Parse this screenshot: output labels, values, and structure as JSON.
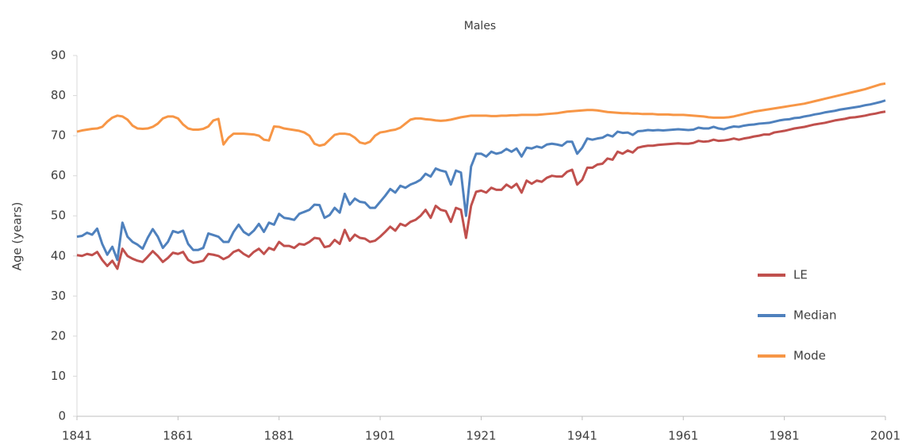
{
  "chart_data": {
    "type": "line",
    "title": "Males",
    "y_label": "Age (years)",
    "x": [
      1841,
      1842,
      1843,
      1844,
      1845,
      1846,
      1847,
      1848,
      1849,
      1850,
      1851,
      1852,
      1853,
      1854,
      1855,
      1856,
      1857,
      1858,
      1859,
      1860,
      1861,
      1862,
      1863,
      1864,
      1865,
      1866,
      1867,
      1868,
      1869,
      1870,
      1871,
      1872,
      1873,
      1874,
      1875,
      1876,
      1877,
      1878,
      1879,
      1880,
      1881,
      1882,
      1883,
      1884,
      1885,
      1886,
      1887,
      1888,
      1889,
      1890,
      1891,
      1892,
      1893,
      1894,
      1895,
      1896,
      1897,
      1898,
      1899,
      1900,
      1901,
      1902,
      1903,
      1904,
      1905,
      1906,
      1907,
      1908,
      1909,
      1910,
      1911,
      1912,
      1913,
      1914,
      1915,
      1916,
      1917,
      1918,
      1919,
      1920,
      1921,
      1922,
      1923,
      1924,
      1925,
      1926,
      1927,
      1928,
      1929,
      1930,
      1931,
      1932,
      1933,
      1934,
      1935,
      1936,
      1937,
      1938,
      1939,
      1940,
      1941,
      1942,
      1943,
      1944,
      1945,
      1946,
      1947,
      1948,
      1949,
      1950,
      1951,
      1952,
      1953,
      1954,
      1955,
      1956,
      1957,
      1958,
      1959,
      1960,
      1961,
      1962,
      1963,
      1964,
      1965,
      1966,
      1967,
      1968,
      1969,
      1970,
      1971,
      1972,
      1973,
      1974,
      1975,
      1976,
      1977,
      1978,
      1979,
      1980,
      1981,
      1982,
      1983,
      1984,
      1985,
      1986,
      1987,
      1988,
      1989,
      1990,
      1991,
      1992,
      1993,
      1994,
      1995,
      1996,
      1997,
      1998,
      1999,
      2000,
      2001
    ],
    "series": [
      {
        "name": "LE",
        "color": "#c0504d",
        "values": [
          40.2,
          40.0,
          40.5,
          40.2,
          41.0,
          39.0,
          37.5,
          38.8,
          36.8,
          41.8,
          40.0,
          39.3,
          38.8,
          38.5,
          39.8,
          41.2,
          40.0,
          38.5,
          39.5,
          40.8,
          40.5,
          41.0,
          39.0,
          38.3,
          38.5,
          38.8,
          40.5,
          40.3,
          40.0,
          39.2,
          39.8,
          41.0,
          41.5,
          40.5,
          39.8,
          41.0,
          41.8,
          40.5,
          42.0,
          41.5,
          43.5,
          42.5,
          42.5,
          42.0,
          43.0,
          42.8,
          43.5,
          44.5,
          44.3,
          42.2,
          42.5,
          44.0,
          43.0,
          46.5,
          43.8,
          45.3,
          44.5,
          44.3,
          43.5,
          43.8,
          44.8,
          46.0,
          47.3,
          46.3,
          48.0,
          47.5,
          48.5,
          49.0,
          50.0,
          51.5,
          49.5,
          52.5,
          51.5,
          51.2,
          48.5,
          52.0,
          51.5,
          44.5,
          52.5,
          56.0,
          56.3,
          55.8,
          57.0,
          56.5,
          56.5,
          57.8,
          57.0,
          58.0,
          55.8,
          58.8,
          58.0,
          58.8,
          58.5,
          59.5,
          60.0,
          59.8,
          59.8,
          61.0,
          61.5,
          57.8,
          59.0,
          62.0,
          62.0,
          62.8,
          63.0,
          64.3,
          64.0,
          66.0,
          65.5,
          66.3,
          65.8,
          67.0,
          67.3,
          67.5,
          67.5,
          67.7,
          67.8,
          67.9,
          68.0,
          68.1,
          68.0,
          68.0,
          68.2,
          68.7,
          68.5,
          68.6,
          69.0,
          68.7,
          68.8,
          69.0,
          69.3,
          69.0,
          69.3,
          69.5,
          69.8,
          70.0,
          70.3,
          70.3,
          70.8,
          71.0,
          71.2,
          71.5,
          71.8,
          72.0,
          72.2,
          72.5,
          72.8,
          73.0,
          73.2,
          73.5,
          73.8,
          74.0,
          74.2,
          74.5,
          74.6,
          74.8,
          75.0,
          75.3,
          75.5,
          75.8,
          76.0
        ]
      },
      {
        "name": "Median",
        "color": "#4f81bd",
        "values": [
          44.8,
          45.0,
          45.8,
          45.3,
          46.8,
          43.0,
          40.3,
          42.3,
          39.0,
          48.3,
          44.8,
          43.5,
          42.8,
          41.8,
          44.5,
          46.7,
          44.8,
          42.0,
          43.5,
          46.2,
          45.8,
          46.3,
          43.0,
          41.5,
          41.5,
          42.0,
          45.6,
          45.2,
          44.8,
          43.5,
          43.5,
          46.0,
          47.8,
          46.0,
          45.2,
          46.3,
          48.0,
          46.0,
          48.3,
          47.8,
          50.5,
          49.5,
          49.3,
          49.0,
          50.5,
          51.0,
          51.5,
          52.8,
          52.7,
          49.5,
          50.2,
          52.0,
          50.8,
          55.5,
          52.8,
          54.3,
          53.5,
          53.3,
          52.0,
          52.0,
          53.5,
          55.0,
          56.7,
          55.8,
          57.5,
          57.0,
          57.8,
          58.3,
          59.0,
          60.5,
          59.8,
          61.8,
          61.3,
          61.0,
          57.8,
          61.3,
          60.8,
          50.0,
          62.3,
          65.5,
          65.5,
          64.8,
          66.0,
          65.5,
          65.8,
          66.7,
          66.0,
          66.8,
          64.8,
          67.0,
          66.8,
          67.3,
          67.0,
          67.8,
          68.0,
          67.8,
          67.5,
          68.5,
          68.5,
          65.5,
          67.0,
          69.3,
          69.0,
          69.3,
          69.5,
          70.2,
          69.8,
          71.0,
          70.7,
          70.8,
          70.2,
          71.1,
          71.2,
          71.4,
          71.3,
          71.4,
          71.3,
          71.4,
          71.5,
          71.6,
          71.5,
          71.4,
          71.5,
          72.0,
          71.8,
          71.8,
          72.2,
          71.8,
          71.6,
          72.0,
          72.3,
          72.2,
          72.5,
          72.7,
          72.8,
          73.0,
          73.1,
          73.2,
          73.5,
          73.8,
          74.0,
          74.1,
          74.4,
          74.5,
          74.8,
          75.0,
          75.3,
          75.5,
          75.8,
          76.0,
          76.2,
          76.5,
          76.7,
          76.9,
          77.1,
          77.3,
          77.6,
          77.8,
          78.1,
          78.4,
          78.8
        ]
      },
      {
        "name": "Mode",
        "color": "#f79646",
        "values": [
          71.0,
          71.3,
          71.5,
          71.7,
          71.8,
          72.2,
          73.5,
          74.5,
          75.0,
          74.8,
          74.0,
          72.5,
          71.8,
          71.7,
          71.8,
          72.2,
          73.0,
          74.3,
          74.8,
          74.8,
          74.3,
          72.8,
          71.8,
          71.5,
          71.5,
          71.7,
          72.3,
          73.8,
          74.2,
          67.8,
          69.5,
          70.5,
          70.5,
          70.5,
          70.4,
          70.3,
          70.0,
          69.0,
          68.8,
          72.3,
          72.2,
          71.8,
          71.6,
          71.4,
          71.2,
          70.8,
          70.0,
          68.0,
          67.5,
          67.8,
          69.0,
          70.2,
          70.5,
          70.5,
          70.3,
          69.5,
          68.3,
          68.0,
          68.5,
          70.0,
          70.8,
          71.0,
          71.3,
          71.5,
          72.0,
          73.0,
          74.0,
          74.3,
          74.3,
          74.1,
          74.0,
          73.8,
          73.7,
          73.8,
          74.0,
          74.3,
          74.6,
          74.8,
          75.0,
          75.0,
          75.0,
          75.0,
          74.9,
          74.9,
          75.0,
          75.0,
          75.1,
          75.1,
          75.2,
          75.2,
          75.2,
          75.2,
          75.3,
          75.4,
          75.5,
          75.6,
          75.8,
          76.0,
          76.1,
          76.2,
          76.3,
          76.4,
          76.4,
          76.3,
          76.1,
          75.9,
          75.8,
          75.7,
          75.6,
          75.6,
          75.5,
          75.5,
          75.4,
          75.4,
          75.4,
          75.3,
          75.3,
          75.3,
          75.2,
          75.2,
          75.2,
          75.1,
          75.0,
          74.9,
          74.8,
          74.6,
          74.5,
          74.5,
          74.5,
          74.6,
          74.8,
          75.1,
          75.4,
          75.7,
          76.0,
          76.2,
          76.4,
          76.6,
          76.8,
          77.0,
          77.2,
          77.4,
          77.6,
          77.8,
          78.0,
          78.3,
          78.6,
          78.9,
          79.2,
          79.5,
          79.8,
          80.1,
          80.4,
          80.7,
          81.0,
          81.3,
          81.6,
          82.0,
          82.4,
          82.8,
          83.0
        ]
      }
    ],
    "xlim": [
      1841,
      2001
    ],
    "xticks": [
      1841,
      1861,
      1881,
      1901,
      1921,
      1941,
      1961,
      1981,
      2001
    ],
    "ylim": [
      0,
      90
    ],
    "yticks": [
      0,
      10,
      20,
      30,
      40,
      50,
      60,
      70,
      80,
      90
    ],
    "legend": "right"
  }
}
